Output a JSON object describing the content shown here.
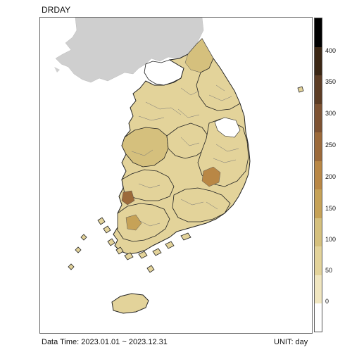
{
  "title": "DRDAY",
  "footer": {
    "data_time": "Data Time: 2023.01.01 ~ 2023.12.31",
    "unit": "UNIT: day"
  },
  "legend": {
    "ticks": [
      "400",
      "350",
      "300",
      "250",
      "200",
      "150",
      "100",
      "50",
      "0"
    ],
    "colors": [
      "#ffffff",
      "#f0e6c0",
      "#e3d39a",
      "#d5c07d",
      "#c6a257",
      "#b98745",
      "#9c6a3a",
      "#7d5232",
      "#5c3c24",
      "#3a2614",
      "#000000"
    ]
  },
  "map": {
    "background_land_color": "#cfcfcf",
    "water_color": "#ffffff"
  }
}
